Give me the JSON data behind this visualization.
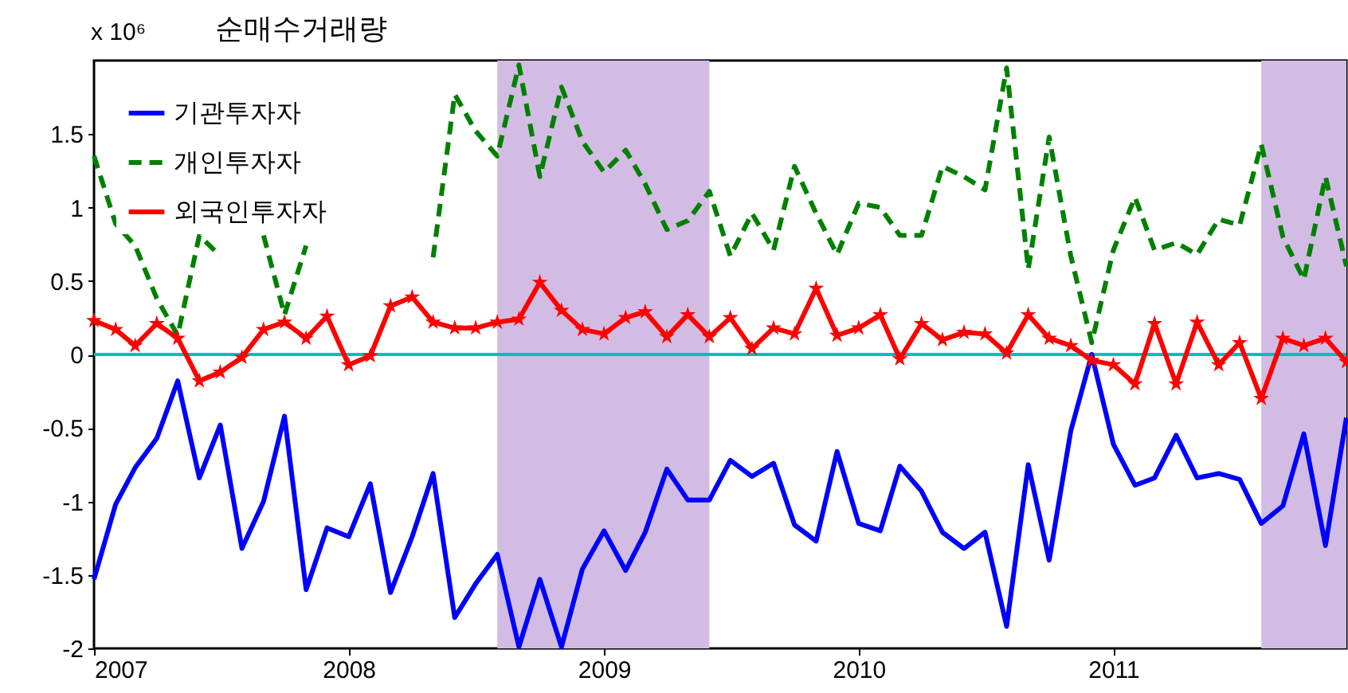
{
  "chart_data": {
    "type": "line",
    "title": "순매수거래량",
    "ylabel": "x 10⁶",
    "x": [
      "2007-01",
      "2007-02",
      "2007-03",
      "2007-04",
      "2007-05",
      "2007-06",
      "2007-07",
      "2007-08",
      "2007-09",
      "2007-10",
      "2007-11",
      "2007-12",
      "2008-01",
      "2008-02",
      "2008-03",
      "2008-04",
      "2008-05",
      "2008-06",
      "2008-07",
      "2008-08",
      "2008-09",
      "2008-10",
      "2008-11",
      "2008-12",
      "2009-01",
      "2009-02",
      "2009-03",
      "2009-04",
      "2009-05",
      "2009-06",
      "2009-07",
      "2009-08",
      "2009-09",
      "2009-10",
      "2009-11",
      "2009-12",
      "2010-01",
      "2010-02",
      "2010-03",
      "2010-04",
      "2010-05",
      "2010-06",
      "2010-07",
      "2010-08",
      "2010-09",
      "2010-10",
      "2010-11",
      "2010-12",
      "2011-01",
      "2011-02",
      "2011-03",
      "2011-04",
      "2011-05",
      "2011-06",
      "2011-07",
      "2011-08",
      "2011-09",
      "2011-10",
      "2011-11",
      "2011-12"
    ],
    "series": [
      {
        "name": "기관투자자",
        "color": "#0000ff",
        "line_style": "solid",
        "marker": "none",
        "values": [
          -1.53,
          -1.02,
          -0.77,
          -0.57,
          -0.18,
          -0.84,
          -0.48,
          -1.32,
          -1.0,
          -0.42,
          -1.6,
          -1.18,
          -1.24,
          -0.88,
          -1.62,
          -1.24,
          -0.81,
          -1.79,
          -1.56,
          -1.36,
          -1.99,
          -1.53,
          -1.99,
          -1.46,
          -1.2,
          -1.47,
          -1.21,
          -0.78,
          -0.99,
          -0.99,
          -0.72,
          -0.83,
          -0.74,
          -1.16,
          -1.27,
          -0.66,
          -1.15,
          -1.2,
          -0.76,
          -0.93,
          -1.21,
          -1.32,
          -1.21,
          -1.85,
          -0.75,
          -1.4,
          -0.52,
          0.0,
          -0.61,
          -0.89,
          -0.84,
          -0.55,
          -0.84,
          -0.81,
          -0.85,
          -1.15,
          -1.03,
          -0.54,
          -1.3,
          -0.43
        ]
      },
      {
        "name": "개인투자자",
        "color": "#008000",
        "line_style": "dashed",
        "marker": "none",
        "values": [
          1.35,
          0.89,
          0.74,
          0.38,
          0.13,
          0.81,
          0.67,
          null,
          0.81,
          0.27,
          0.74,
          null,
          null,
          null,
          null,
          null,
          0.66,
          1.77,
          1.52,
          1.35,
          1.97,
          1.21,
          1.82,
          1.45,
          1.24,
          1.39,
          1.16,
          0.85,
          0.91,
          1.11,
          0.67,
          0.96,
          0.71,
          1.28,
          0.96,
          0.68,
          1.03,
          1.0,
          0.81,
          0.81,
          1.28,
          1.21,
          1.12,
          1.95,
          0.58,
          1.48,
          0.67,
          0.08,
          0.71,
          1.07,
          0.71,
          0.76,
          0.68,
          0.92,
          0.88,
          1.43,
          0.8,
          0.51,
          1.21,
          0.6
        ]
      },
      {
        "name": "외국인투자자",
        "color": "#ff0000",
        "line_style": "solid",
        "marker": "star",
        "values": [
          0.23,
          0.17,
          0.06,
          0.21,
          0.11,
          -0.18,
          -0.12,
          -0.02,
          0.17,
          0.22,
          0.11,
          0.26,
          -0.07,
          -0.01,
          0.33,
          0.39,
          0.22,
          0.18,
          0.18,
          0.22,
          0.24,
          0.49,
          0.3,
          0.17,
          0.14,
          0.25,
          0.29,
          0.12,
          0.27,
          0.12,
          0.25,
          0.04,
          0.18,
          0.14,
          0.45,
          0.13,
          0.18,
          0.27,
          -0.03,
          0.21,
          0.1,
          0.15,
          0.14,
          0.01,
          0.27,
          0.11,
          0.06,
          -0.04,
          -0.07,
          -0.2,
          0.21,
          -0.2,
          0.22,
          -0.07,
          0.08,
          -0.3,
          0.11,
          0.06,
          0.11,
          -0.05
        ]
      }
    ],
    "xlim": [
      "2007-01",
      "2011-12"
    ],
    "xticks": [
      "2007",
      "2008",
      "2009",
      "2010",
      "2011"
    ],
    "ylim": [
      -2,
      2
    ],
    "yticks": [
      -2,
      -1.5,
      -1,
      -0.5,
      0,
      0.5,
      1,
      1.5
    ],
    "ref_lines": [
      {
        "axis": "y",
        "value": 0,
        "color": "#00bfbf"
      }
    ],
    "bands": [
      {
        "axis": "x",
        "from": "2008-08",
        "to": "2009-06",
        "color": "#d3bce3"
      },
      {
        "axis": "x",
        "from": "2011-08",
        "to": "2011-12",
        "color": "#d3bce3"
      }
    ],
    "grid": false,
    "legend": "top left"
  }
}
